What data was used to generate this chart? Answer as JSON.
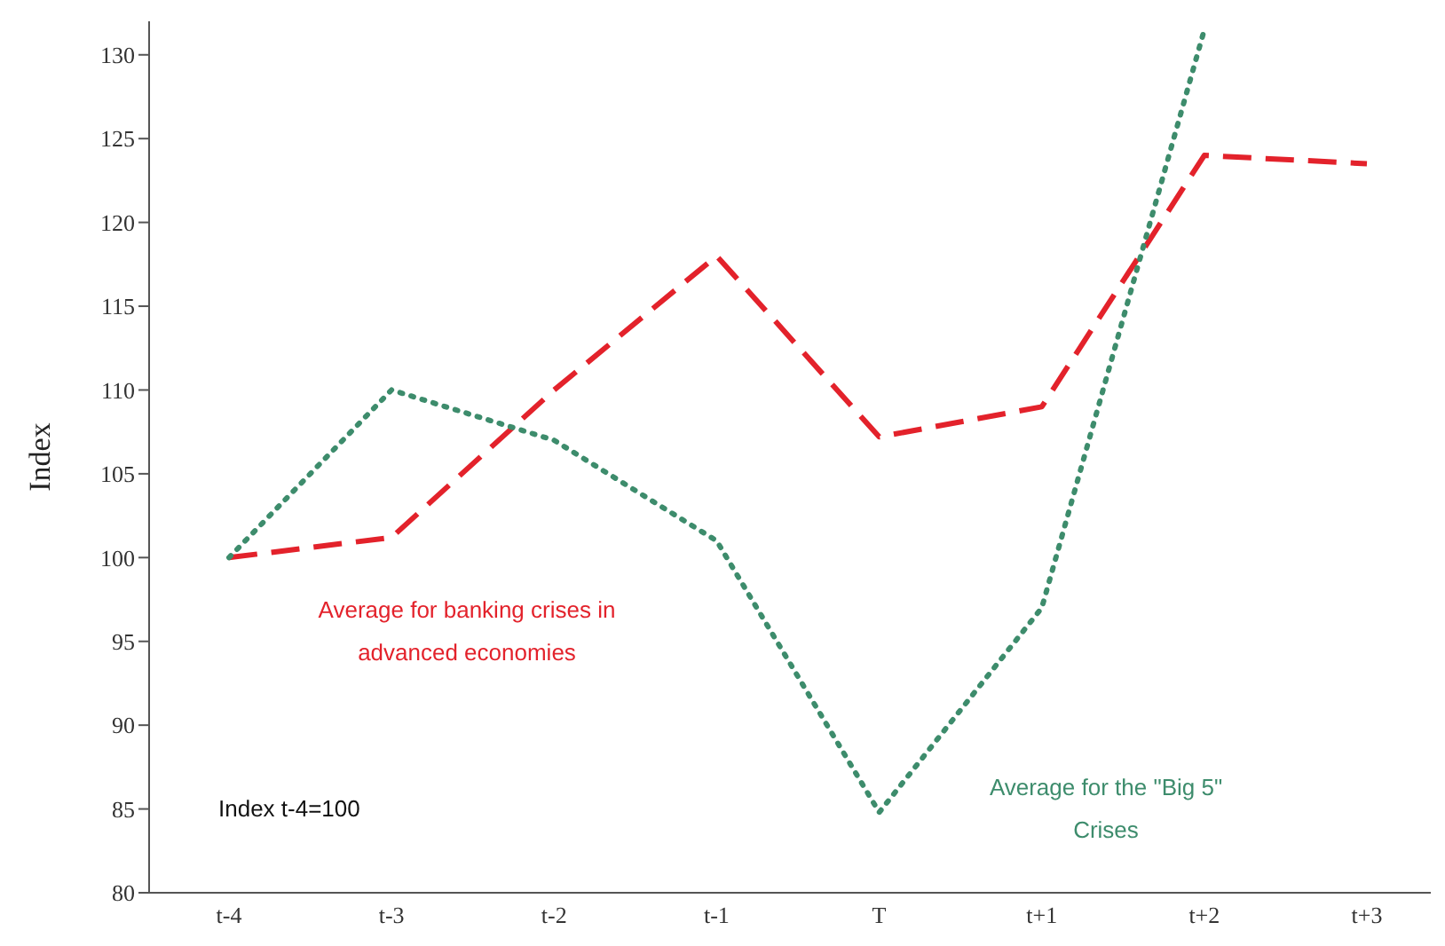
{
  "chart_data": {
    "type": "line",
    "ylabel": "Index",
    "categories": [
      "t-4",
      "t-3",
      "t-2",
      "t-1",
      "T",
      "t+1",
      "t+2",
      "t+3"
    ],
    "series": [
      {
        "name": "Average for banking crises in advanced economies",
        "color": "#e3222b",
        "line_style": "dashed",
        "values": [
          100,
          101.2,
          110,
          118,
          107.2,
          109,
          124,
          123.5
        ]
      },
      {
        "name": "Average for the \"Big 5\" Crises",
        "color": "#3d8c6c",
        "line_style": "dotted",
        "values": [
          100,
          110,
          107,
          101,
          84.8,
          97,
          131.5,
          null
        ]
      }
    ],
    "ylim": [
      80,
      132
    ],
    "yticks": [
      80,
      85,
      90,
      95,
      100,
      105,
      110,
      115,
      120,
      125,
      130
    ],
    "grid": false,
    "legend": false,
    "marker": "none",
    "annotations": [
      "Index t-4=100"
    ]
  }
}
